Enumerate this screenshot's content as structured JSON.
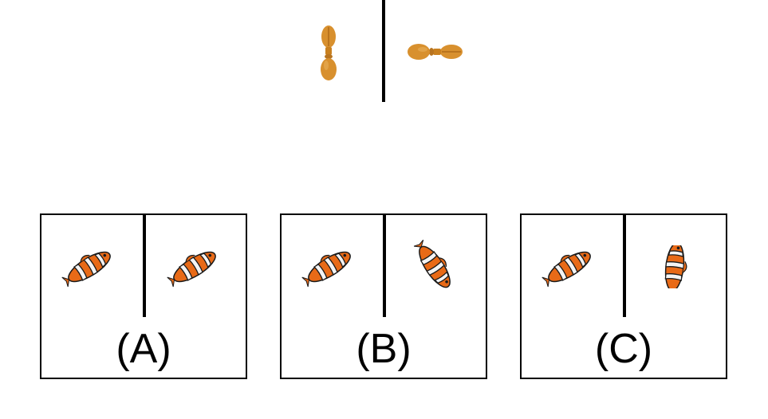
{
  "example": {
    "left_object": "pepper-mill-icon",
    "right_object": "pepper-mill-rotated-icon"
  },
  "options": [
    {
      "label": "(A)",
      "left_icon": "clownfish-icon",
      "right_icon": "clownfish-icon"
    },
    {
      "label": "(B)",
      "left_icon": "clownfish-icon",
      "right_icon": "clownfish-rotated-icon"
    },
    {
      "label": "(C)",
      "left_icon": "clownfish-icon",
      "right_icon": "clownfish-flipped-icon"
    }
  ],
  "colors": {
    "pepper_mill": "#d8902e",
    "fish_orange": "#e86a17",
    "fish_white": "#f4f4f4",
    "fish_black": "#1a1a1a",
    "line": "#000000"
  }
}
